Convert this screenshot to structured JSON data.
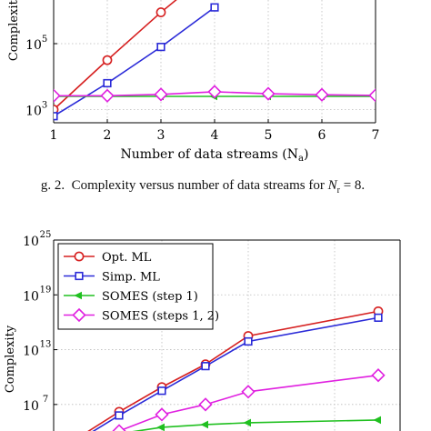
{
  "caption": {
    "prefix": "g. 2.",
    "text": "Complexity versus number of data streams for",
    "var": "N",
    "sub": "r",
    "rest": " = 8."
  },
  "chart_data": [
    {
      "type": "line",
      "ylabel": "Complexity",
      "xlabel": "Number of data streams (N",
      "xlabel_sub": "a",
      "xlabel_end": ")",
      "yscale": "log",
      "x_ticks": [
        1,
        2,
        3,
        4,
        5,
        6,
        7
      ],
      "y_ticks": [
        {
          "exp": "3",
          "value": 1000
        },
        {
          "exp": "5",
          "value": 100000
        }
      ],
      "xlim": [
        1,
        7
      ],
      "ylim_exp": [
        2.6,
        6.6
      ],
      "grid": true,
      "series": [
        {
          "color": "#d62020",
          "marker": "circle",
          "x": [
            1,
            2,
            3,
            3.6
          ],
          "log10": [
            3.0,
            4.5,
            5.95,
            6.75
          ]
        },
        {
          "color": "#2b2bd8",
          "marker": "square",
          "x": [
            1,
            2,
            3,
            4
          ],
          "log10": [
            2.8,
            3.8,
            4.9,
            6.1
          ]
        },
        {
          "color": "#20c020",
          "marker": "triangle",
          "x": [
            1,
            2,
            3,
            4,
            5,
            6,
            7
          ],
          "log10": [
            3.4,
            3.4,
            3.4,
            3.4,
            3.4,
            3.4,
            3.4
          ]
        },
        {
          "color": "#e020e0",
          "marker": "diamond",
          "x": [
            1,
            2,
            3,
            4,
            5,
            6,
            7
          ],
          "log10": [
            3.42,
            3.42,
            3.46,
            3.54,
            3.48,
            3.45,
            3.43
          ]
        }
      ]
    },
    {
      "type": "line",
      "ylabel": "Complexity",
      "yscale": "log",
      "y_ticks": [
        {
          "exp": "7",
          "value": 10000000
        },
        {
          "exp": "13",
          "value": 10000000000000.0
        },
        {
          "exp": "19",
          "value": 1e+19
        },
        {
          "exp": "25",
          "value": 1e+25
        }
      ],
      "ylim_exp": [
        3.5,
        25
      ],
      "legend_position": "top-left",
      "grid": true,
      "series": [
        {
          "name": "Opt. ML",
          "color": "#d62020",
          "marker": "circle",
          "x": [
            1,
            2,
            3,
            4,
            5,
            6
          ],
          "log10": [
            3.3,
            6.2,
            8.9,
            11.4,
            14.5,
            17.2
          ]
        },
        {
          "name": "Simp. ML",
          "color": "#2b2bd8",
          "marker": "square",
          "x": [
            1,
            2,
            3,
            4,
            5,
            6
          ],
          "log10": [
            3.0,
            5.8,
            8.5,
            11.2,
            13.9,
            16.5
          ]
        },
        {
          "name": "SOMES (step 1)",
          "color": "#20c020",
          "marker": "triangle",
          "x": [
            1,
            2,
            3,
            4,
            5,
            6
          ],
          "log10": [
            3.0,
            3.8,
            4.5,
            4.8,
            5.0,
            5.3
          ]
        },
        {
          "name": "SOMES (steps 1, 2)",
          "color": "#e020e0",
          "marker": "diamond",
          "x": [
            1,
            2,
            3,
            4,
            5,
            6
          ],
          "log10": [
            3.2,
            4.1,
            5.9,
            7.0,
            8.4,
            10.2
          ]
        }
      ]
    }
  ]
}
